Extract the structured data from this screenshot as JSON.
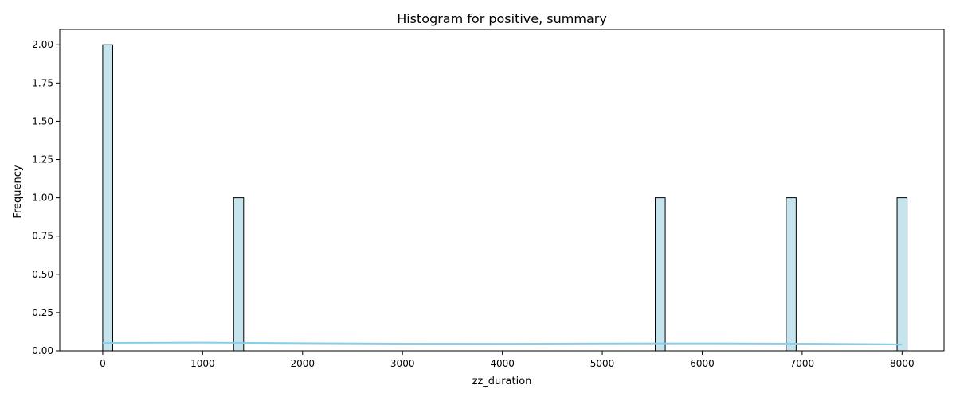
{
  "chart_data": {
    "type": "bar",
    "title": "Histogram for positive, summary",
    "xlabel": "zz_duration",
    "ylabel": "Frequency",
    "xlim": [
      -430,
      8420
    ],
    "ylim": [
      0,
      2.1
    ],
    "x_ticks": [
      0,
      1000,
      2000,
      3000,
      4000,
      5000,
      6000,
      7000,
      8000
    ],
    "y_ticks": [
      0.0,
      0.25,
      0.5,
      0.75,
      1.0,
      1.25,
      1.5,
      1.75,
      2.0
    ],
    "y_tick_labels": [
      "0.00",
      "0.25",
      "0.50",
      "0.75",
      "1.00",
      "1.25",
      "1.50",
      "1.75",
      "2.00"
    ],
    "bins": [
      {
        "x_start": 0,
        "x_end": 100,
        "count": 2
      },
      {
        "x_start": 1310,
        "x_end": 1410,
        "count": 1
      },
      {
        "x_start": 5530,
        "x_end": 5630,
        "count": 1
      },
      {
        "x_start": 6840,
        "x_end": 6940,
        "count": 1
      },
      {
        "x_start": 7950,
        "x_end": 8050,
        "count": 1
      }
    ],
    "kde_line": {
      "x": [
        0,
        1000,
        2000,
        3000,
        4000,
        5000,
        6000,
        7000,
        8000
      ],
      "y": [
        0.052,
        0.054,
        0.05,
        0.047,
        0.046,
        0.048,
        0.049,
        0.047,
        0.042
      ]
    },
    "grid": false,
    "colors": {
      "bar_fill": "#add8e6",
      "bar_fill_opacity": 0.7,
      "bar_edge": "#000000",
      "kde": "#87ceeb"
    }
  }
}
